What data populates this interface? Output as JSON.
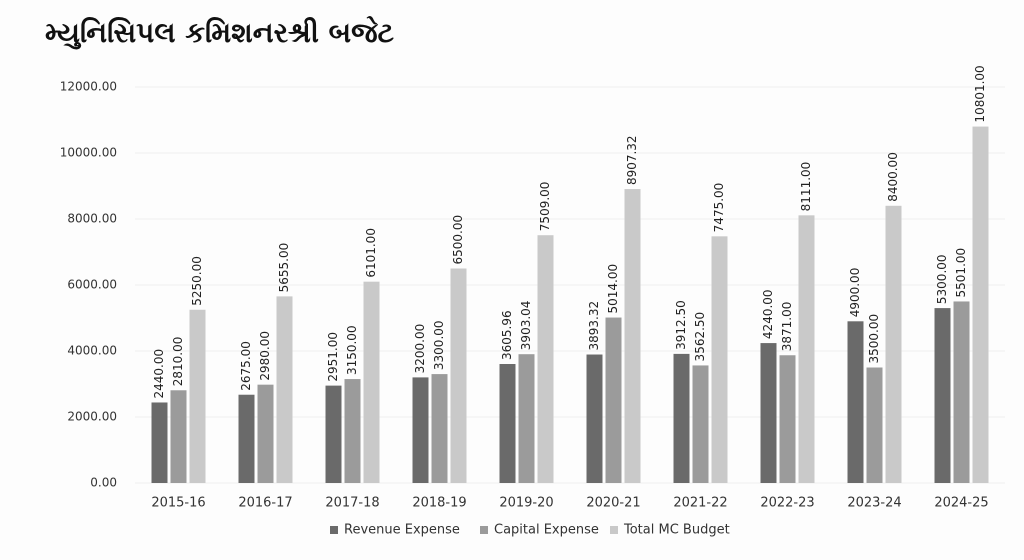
{
  "chart_data": {
    "type": "bar",
    "title": "મ્યુનિસિપલ કમિશનરશ્રી બજેટ",
    "categories": [
      "2015-16",
      "2016-17",
      "2017-18",
      "2018-19",
      "2019-20",
      "2020-21",
      "2021-22",
      "2022-23",
      "2023-24",
      "2024-25"
    ],
    "series": [
      {
        "name": "Revenue Expense",
        "color": "#6a6a6a",
        "values": [
          2440,
          2675,
          2951,
          3200,
          3605.96,
          3893.32,
          3912.5,
          4240,
          4900,
          5300
        ],
        "value_labels": [
          "2440.00",
          "2675.00",
          "2951.00",
          "3200.00",
          "3605.96",
          "3893.32",
          "3912.50",
          "4240.00",
          "4900.00",
          "5300.00"
        ]
      },
      {
        "name": "Capital Expense",
        "color": "#9b9b9b",
        "values": [
          2810,
          2980,
          3150,
          3300,
          3903.04,
          5014,
          3562.5,
          3871,
          3500,
          5501
        ],
        "value_labels": [
          "2810.00",
          "2980.00",
          "3150.00",
          "3300.00",
          "3903.04",
          "5014.00",
          "3562.50",
          "3871.00",
          "3500.00",
          "5501.00"
        ]
      },
      {
        "name": "Total MC Budget",
        "color": "#c9c9c9",
        "values": [
          5250,
          5655,
          6101,
          6500,
          7509,
          8907.32,
          7475,
          8111,
          8400,
          10801
        ],
        "value_labels": [
          "5250.00",
          "5655.00",
          "6101.00",
          "6500.00",
          "7509.00",
          "8907.32",
          "7475.00",
          "8111.00",
          "8400.00",
          "10801.00"
        ]
      }
    ],
    "ylim": [
      0,
      12000
    ],
    "yticks": [
      {
        "value": 0,
        "label": "0.00"
      },
      {
        "value": 2000,
        "label": "2000.00"
      },
      {
        "value": 4000,
        "label": "4000.00"
      },
      {
        "value": 6000,
        "label": "6000.00"
      },
      {
        "value": 8000,
        "label": "8000.00"
      },
      {
        "value": 10000,
        "label": "10000.00"
      },
      {
        "value": 12000,
        "label": "12000.00"
      }
    ],
    "grid": true,
    "legend": "bottom"
  }
}
